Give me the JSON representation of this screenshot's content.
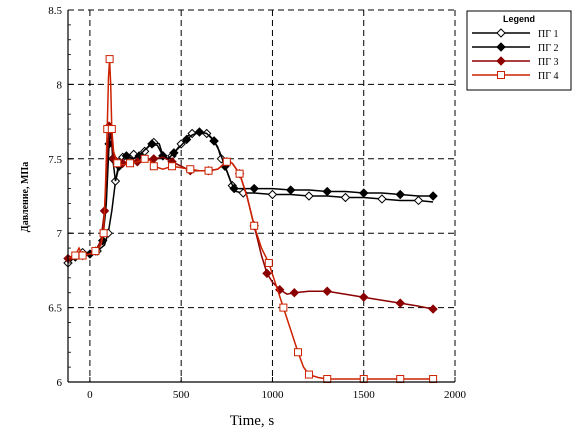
{
  "chart_data": {
    "type": "line",
    "xlabel": "Time, s",
    "ylabel": "Давление, МПа",
    "xlim": [
      -120,
      2000
    ],
    "ylim": [
      6,
      8.5
    ],
    "xticks": [
      0,
      500,
      1000,
      1500,
      2000
    ],
    "yticks": [
      6,
      6.5,
      7,
      7.5,
      8,
      8.5
    ],
    "grid": true,
    "legend_position": "top-right",
    "legend_title": "Legend",
    "series": [
      {
        "name": "ПГ 1",
        "color": "#000000",
        "marker": "diamond-open",
        "points": [
          [
            -120,
            6.8
          ],
          [
            -80,
            6.84
          ],
          [
            -40,
            6.87
          ],
          [
            0,
            6.87
          ],
          [
            40,
            6.88
          ],
          [
            80,
            6.92
          ],
          [
            100,
            7.0
          ],
          [
            120,
            7.15
          ],
          [
            140,
            7.35
          ],
          [
            160,
            7.48
          ],
          [
            180,
            7.51
          ],
          [
            200,
            7.52
          ],
          [
            240,
            7.53
          ],
          [
            270,
            7.51
          ],
          [
            300,
            7.55
          ],
          [
            330,
            7.6
          ],
          [
            350,
            7.61
          ],
          [
            380,
            7.6
          ],
          [
            400,
            7.52
          ],
          [
            420,
            7.5
          ],
          [
            450,
            7.52
          ],
          [
            480,
            7.57
          ],
          [
            500,
            7.6
          ],
          [
            530,
            7.65
          ],
          [
            560,
            7.67
          ],
          [
            600,
            7.67
          ],
          [
            640,
            7.67
          ],
          [
            660,
            7.65
          ],
          [
            680,
            7.62
          ],
          [
            700,
            7.58
          ],
          [
            720,
            7.5
          ],
          [
            750,
            7.42
          ],
          [
            780,
            7.32
          ],
          [
            800,
            7.28
          ],
          [
            840,
            7.27
          ],
          [
            900,
            7.27
          ],
          [
            1000,
            7.26
          ],
          [
            1100,
            7.26
          ],
          [
            1200,
            7.25
          ],
          [
            1300,
            7.25
          ],
          [
            1400,
            7.24
          ],
          [
            1500,
            7.24
          ],
          [
            1600,
            7.23
          ],
          [
            1700,
            7.22
          ],
          [
            1800,
            7.22
          ],
          [
            1880,
            7.21
          ]
        ]
      },
      {
        "name": "ПГ 2",
        "color": "#000000",
        "marker": "diamond-filled",
        "points": [
          [
            -120,
            6.82
          ],
          [
            -80,
            6.84
          ],
          [
            -40,
            6.85
          ],
          [
            0,
            6.86
          ],
          [
            40,
            6.88
          ],
          [
            70,
            6.95
          ],
          [
            90,
            7.2
          ],
          [
            105,
            7.6
          ],
          [
            115,
            7.7
          ],
          [
            125,
            7.5
          ],
          [
            140,
            7.35
          ],
          [
            160,
            7.45
          ],
          [
            180,
            7.5
          ],
          [
            200,
            7.52
          ],
          [
            240,
            7.5
          ],
          [
            270,
            7.52
          ],
          [
            300,
            7.56
          ],
          [
            340,
            7.6
          ],
          [
            370,
            7.59
          ],
          [
            400,
            7.52
          ],
          [
            430,
            7.5
          ],
          [
            460,
            7.54
          ],
          [
            500,
            7.59
          ],
          [
            530,
            7.63
          ],
          [
            560,
            7.66
          ],
          [
            600,
            7.68
          ],
          [
            640,
            7.67
          ],
          [
            680,
            7.62
          ],
          [
            710,
            7.55
          ],
          [
            740,
            7.45
          ],
          [
            770,
            7.35
          ],
          [
            790,
            7.3
          ],
          [
            840,
            7.3
          ],
          [
            900,
            7.3
          ],
          [
            1000,
            7.3
          ],
          [
            1100,
            7.29
          ],
          [
            1200,
            7.29
          ],
          [
            1300,
            7.28
          ],
          [
            1400,
            7.28
          ],
          [
            1500,
            7.27
          ],
          [
            1600,
            7.27
          ],
          [
            1700,
            7.26
          ],
          [
            1800,
            7.25
          ],
          [
            1880,
            7.25
          ]
        ]
      },
      {
        "name": "ПГ 3",
        "color": "#8b0000",
        "marker": "diamond-filled",
        "points": [
          [
            -120,
            6.83
          ],
          [
            -80,
            6.86
          ],
          [
            -40,
            6.85
          ],
          [
            0,
            6.86
          ],
          [
            30,
            6.88
          ],
          [
            60,
            6.95
          ],
          [
            80,
            7.15
          ],
          [
            95,
            7.5
          ],
          [
            105,
            7.72
          ],
          [
            115,
            7.68
          ],
          [
            130,
            7.5
          ],
          [
            150,
            7.46
          ],
          [
            180,
            7.47
          ],
          [
            220,
            7.48
          ],
          [
            260,
            7.48
          ],
          [
            300,
            7.49
          ],
          [
            350,
            7.5
          ],
          [
            400,
            7.51
          ],
          [
            450,
            7.48
          ],
          [
            500,
            7.45
          ],
          [
            550,
            7.42
          ],
          [
            600,
            7.42
          ],
          [
            650,
            7.42
          ],
          [
            700,
            7.43
          ],
          [
            750,
            7.48
          ],
          [
            780,
            7.47
          ],
          [
            820,
            7.4
          ],
          [
            860,
            7.25
          ],
          [
            900,
            7.05
          ],
          [
            940,
            6.85
          ],
          [
            970,
            6.73
          ],
          [
            1000,
            6.67
          ],
          [
            1040,
            6.62
          ],
          [
            1080,
            6.59
          ],
          [
            1120,
            6.6
          ],
          [
            1200,
            6.61
          ],
          [
            1300,
            6.61
          ],
          [
            1400,
            6.59
          ],
          [
            1500,
            6.57
          ],
          [
            1600,
            6.55
          ],
          [
            1700,
            6.53
          ],
          [
            1800,
            6.51
          ],
          [
            1880,
            6.49
          ]
        ]
      },
      {
        "name": "ПГ 4",
        "color": "#cc2200",
        "marker": "square-open",
        "points": [
          [
            -120,
            6.83
          ],
          [
            -80,
            6.85
          ],
          [
            -60,
            6.9
          ],
          [
            -40,
            6.85
          ],
          [
            0,
            6.86
          ],
          [
            30,
            6.88
          ],
          [
            60,
            6.92
          ],
          [
            75,
            7.0
          ],
          [
            85,
            7.3
          ],
          [
            95,
            7.7
          ],
          [
            102,
            8.05
          ],
          [
            108,
            8.17
          ],
          [
            114,
            8.0
          ],
          [
            120,
            7.7
          ],
          [
            130,
            7.55
          ],
          [
            150,
            7.47
          ],
          [
            180,
            7.46
          ],
          [
            220,
            7.47
          ],
          [
            260,
            7.48
          ],
          [
            300,
            7.5
          ],
          [
            330,
            7.49
          ],
          [
            350,
            7.45
          ],
          [
            400,
            7.43
          ],
          [
            450,
            7.45
          ],
          [
            500,
            7.44
          ],
          [
            550,
            7.43
          ],
          [
            600,
            7.42
          ],
          [
            650,
            7.42
          ],
          [
            700,
            7.43
          ],
          [
            750,
            7.48
          ],
          [
            780,
            7.47
          ],
          [
            820,
            7.4
          ],
          [
            860,
            7.25
          ],
          [
            900,
            7.05
          ],
          [
            940,
            6.9
          ],
          [
            980,
            6.8
          ],
          [
            1020,
            6.65
          ],
          [
            1060,
            6.5
          ],
          [
            1100,
            6.35
          ],
          [
            1140,
            6.2
          ],
          [
            1170,
            6.1
          ],
          [
            1200,
            6.05
          ],
          [
            1250,
            6.03
          ],
          [
            1300,
            6.02
          ],
          [
            1400,
            6.02
          ],
          [
            1500,
            6.02
          ],
          [
            1600,
            6.02
          ],
          [
            1700,
            6.02
          ],
          [
            1800,
            6.02
          ],
          [
            1880,
            6.02
          ]
        ]
      }
    ]
  }
}
